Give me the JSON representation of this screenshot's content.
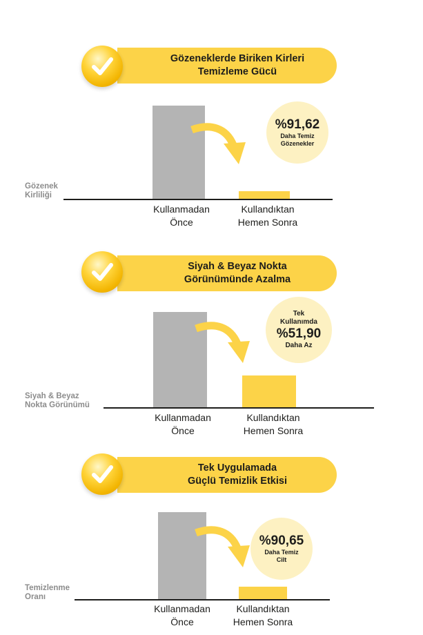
{
  "colors": {
    "accent": "#fcd348",
    "bar_before": "#b4b4b4",
    "circle_bg": "#fdf1c2",
    "text": "#1d1d1b",
    "label_gray": "#8c8c8c"
  },
  "x_labels": {
    "before_line1": "Kullanmadan",
    "before_line2": "Önce",
    "after_line1": "Kullandıktan",
    "after_line2": "Hemen Sonra"
  },
  "panels": [
    {
      "title_line1": "Gözeneklerde Biriken Kirleri",
      "title_line2": "Temizleme Gücü",
      "ylabel_line1": "Gözenek",
      "ylabel_line2": "Kirliliği",
      "badge_value": "%91,62",
      "badge_line1": "Daha Temiz",
      "badge_line2": "Gözenekler"
    },
    {
      "title_line1": "Siyah & Beyaz Nokta",
      "title_line2": "Görünümünde Azalma",
      "ylabel_line1": "Siyah & Beyaz",
      "ylabel_line2": "Nokta Görünümü",
      "badge_top1": "Tek",
      "badge_top2": "Kullanımda",
      "badge_value": "%51,90",
      "badge_line1": "Daha Az"
    },
    {
      "title_line1": "Tek Uygulamada",
      "title_line2": "Güçlü Temizlik Etkisi",
      "ylabel_line1": "Temizlenme",
      "ylabel_line2": "Oranı",
      "badge_value": "%90,65",
      "badge_line1": "Daha Temiz",
      "badge_line2": "Cilt"
    }
  ]
}
